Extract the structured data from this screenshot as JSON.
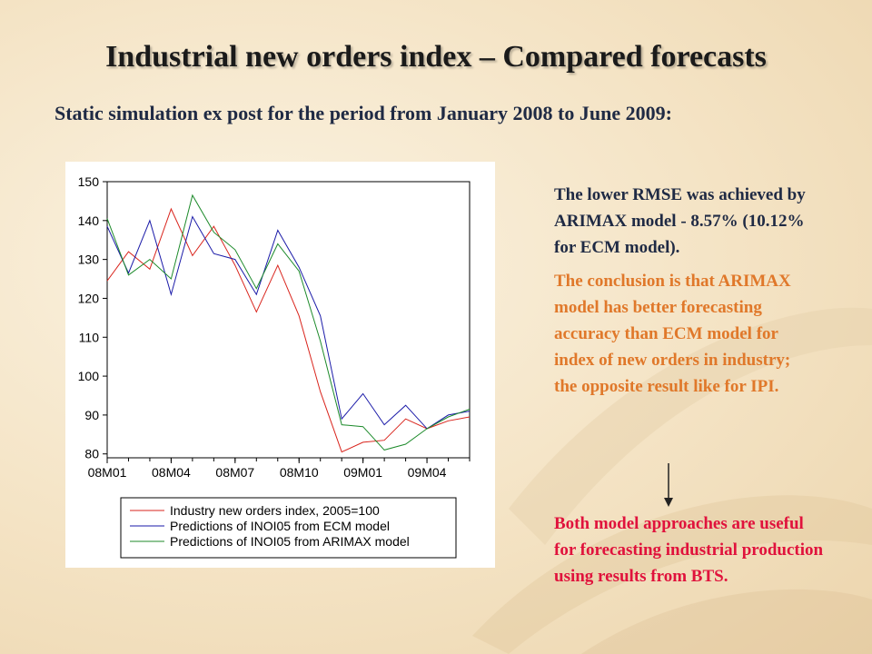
{
  "title": "Industrial new orders index – Compared forecasts",
  "subtitle": "Static simulation ex post for the period from January 2008 to June 2009:",
  "notes": {
    "p1": "The lower RMSE was achieved by ARIMAX model - 8.57% (10.12% for ECM model).",
    "p2": "The conclusion is that ARIMAX model has better forecasting accuracy than ECM model for index of new orders in industry; the opposite result like for IPI.",
    "p3": "Both model approaches are useful for forecasting industrial production using results from BTS."
  },
  "colors": {
    "note1": "#1f2a44",
    "note2": "#e0782a",
    "note3": "#e0123c"
  },
  "chart_data": {
    "type": "line",
    "x": [
      "08M01",
      "08M02",
      "08M03",
      "08M04",
      "08M05",
      "08M06",
      "08M07",
      "08M08",
      "08M09",
      "08M10",
      "08M11",
      "08M12",
      "09M01",
      "09M02",
      "09M03",
      "09M04",
      "09M05",
      "09M06"
    ],
    "xticks": [
      "08M01",
      "08M04",
      "08M07",
      "08M10",
      "09M01",
      "09M04"
    ],
    "ylim": [
      79,
      150
    ],
    "yticks": [
      80,
      90,
      100,
      110,
      120,
      130,
      140,
      150
    ],
    "grid": false,
    "legend_position": "bottom",
    "series": [
      {
        "name": "Industry new orders index, 2005=100",
        "color": "#d9241c",
        "values": [
          124.5,
          132,
          127.5,
          143,
          131,
          138.5,
          128.5,
          116.5,
          128.5,
          115.5,
          96,
          80.5,
          83,
          83.5,
          89,
          86.5,
          88.5,
          89.5
        ]
      },
      {
        "name": "Predictions of INOI05 from ECM model",
        "color": "#1a1aa8",
        "values": [
          138.5,
          126.5,
          140,
          121,
          141,
          131.5,
          130,
          121,
          137.5,
          128,
          115.5,
          89,
          95.5,
          87.5,
          92.5,
          86.5,
          90,
          91
        ]
      },
      {
        "name": "Predictions of INOI05 from ARIMAX model",
        "color": "#1c8a2a",
        "values": [
          140.5,
          126,
          130,
          125,
          146.5,
          137,
          132.5,
          122.5,
          134,
          127,
          109,
          87.5,
          87,
          81,
          82.5,
          86.5,
          89.5,
          91.5
        ]
      }
    ]
  }
}
